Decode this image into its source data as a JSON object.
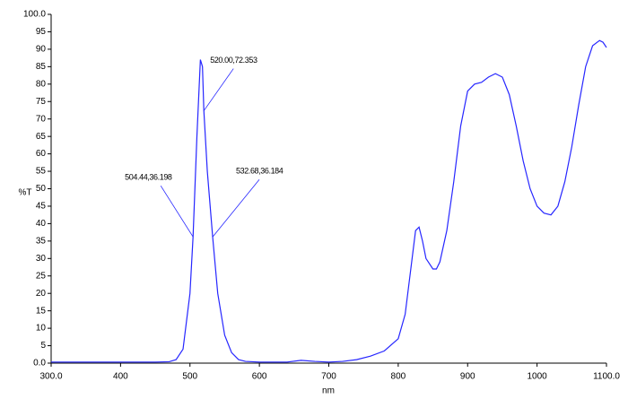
{
  "chart_data": {
    "type": "line",
    "xlabel": "nm",
    "ylabel": "%T",
    "xlim": [
      300,
      1100
    ],
    "ylim": [
      0,
      100
    ],
    "xticks": [
      {
        "value": 300,
        "label": "300.0"
      },
      400,
      500,
      600,
      700,
      800,
      900,
      1000,
      {
        "value": 1100,
        "label": "1100.0"
      }
    ],
    "yticks": [
      {
        "value": 0,
        "label": "0.0"
      },
      5,
      10,
      15,
      20,
      25,
      30,
      35,
      40,
      45,
      50,
      55,
      60,
      65,
      70,
      75,
      80,
      85,
      90,
      95,
      {
        "value": 100,
        "label": "100.0"
      }
    ],
    "grid": false,
    "series": [
      {
        "name": "%T",
        "color": "#2626ff",
        "x": [
          300,
          350,
          400,
          450,
          470,
          480,
          490,
          500,
          504.44,
          510,
          515,
          518,
          520,
          525,
          532.68,
          540,
          550,
          560,
          570,
          580,
          600,
          640,
          660,
          680,
          700,
          720,
          740,
          760,
          780,
          800,
          810,
          820,
          825,
          830,
          835,
          840,
          850,
          855,
          860,
          870,
          880,
          890,
          900,
          910,
          920,
          930,
          940,
          950,
          960,
          970,
          980,
          990,
          1000,
          1010,
          1020,
          1030,
          1040,
          1050,
          1060,
          1070,
          1080,
          1090,
          1095,
          1100
        ],
        "values": [
          0.3,
          0.3,
          0.3,
          0.3,
          0.4,
          1,
          4,
          20,
          36.198,
          65,
          87,
          85,
          72.353,
          55,
          36.184,
          20,
          8,
          3,
          1,
          0.5,
          0.3,
          0.3,
          0.8,
          0.5,
          0.3,
          0.5,
          1,
          2,
          3.5,
          7,
          14,
          30,
          38,
          39,
          35,
          30,
          27,
          27,
          29,
          38,
          52,
          68,
          78,
          80,
          80.5,
          82,
          83,
          82,
          77,
          68,
          58,
          50,
          45,
          43,
          42.5,
          45,
          52,
          62,
          74,
          85,
          91,
          92.5,
          92,
          90.5
        ]
      }
    ],
    "annotations": [
      {
        "label": "520.00,72.353",
        "x": 520,
        "y": 72.353
      },
      {
        "label": "504.44,36.198",
        "x": 504.44,
        "y": 36.198
      },
      {
        "label": "532.68,36.184",
        "x": 532.68,
        "y": 36.184
      }
    ]
  }
}
